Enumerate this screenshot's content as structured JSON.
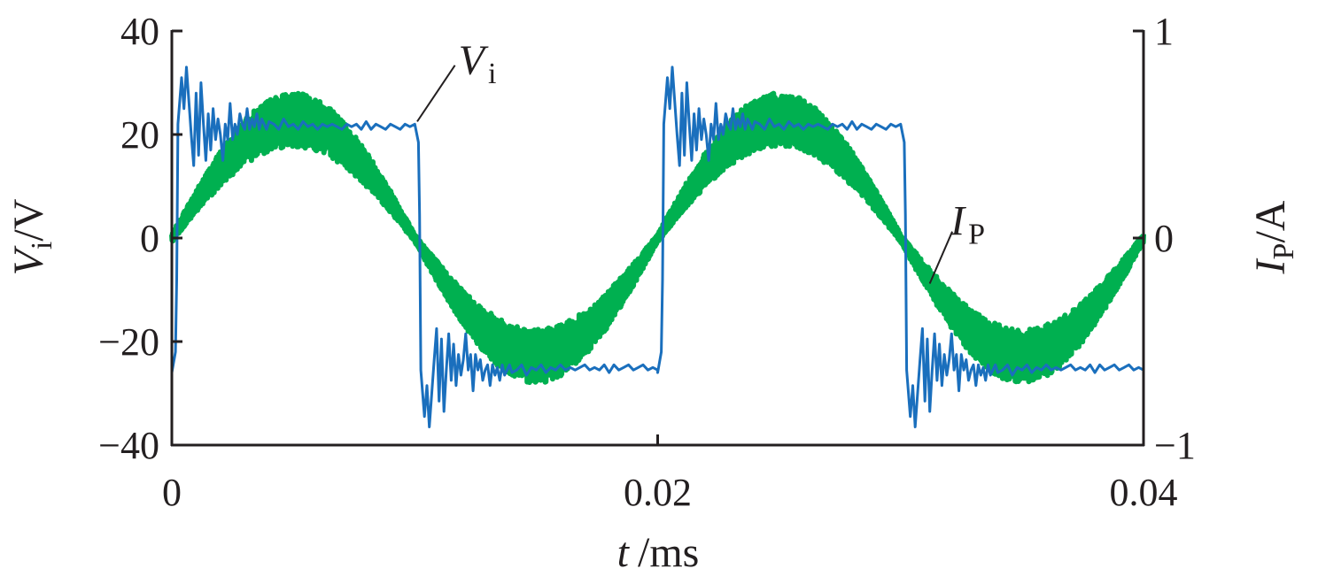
{
  "chart_data": {
    "type": "line",
    "title": "",
    "xlabel": {
      "main": "t",
      "unit": "/ms"
    },
    "ylabel_left": {
      "main": "V",
      "sub": "i",
      "unit": "/V"
    },
    "ylabel_right": {
      "main": "I",
      "sub": "P",
      "unit": "/A"
    },
    "xlim": [
      0,
      0.04
    ],
    "ylim_left": [
      -40,
      40
    ],
    "ylim_right": [
      -1,
      1
    ],
    "x_ticks": [
      0,
      0.02,
      0.04
    ],
    "x_tick_labels": [
      "0",
      "0.02",
      "0.04"
    ],
    "y_left_ticks": [
      40,
      20,
      0,
      -20,
      -40
    ],
    "y_left_tick_labels": [
      "40",
      "20",
      "0",
      "−20",
      "−40"
    ],
    "y_right_ticks": [
      1,
      0,
      -1
    ],
    "y_right_tick_labels": [
      "1",
      "0",
      "−1"
    ],
    "grid": false,
    "series": [
      {
        "name": "Vi",
        "label_main": "V",
        "label_sub": "i",
        "axis": "left",
        "color": "#1a6fbd",
        "square_wave": {
          "period": 0.02,
          "high": 21.5,
          "low": -25
        },
        "x": [
          0.0,
          0.00015,
          0.0002,
          0.00025,
          0.0004,
          0.0005,
          0.0006,
          0.0008,
          0.0009,
          0.001,
          0.0011,
          0.0012,
          0.0013,
          0.0014,
          0.0015,
          0.0016,
          0.0017,
          0.0018,
          0.0019,
          0.002,
          0.0021,
          0.0022,
          0.0023,
          0.0024,
          0.0025,
          0.0026,
          0.0027,
          0.0028,
          0.0029,
          0.003,
          0.0031,
          0.0032,
          0.0033,
          0.0034,
          0.0035,
          0.0036,
          0.0037,
          0.0038,
          0.0039,
          0.004,
          0.0042,
          0.0044,
          0.0046,
          0.0048,
          0.005,
          0.0052,
          0.0054,
          0.0056,
          0.0058,
          0.006,
          0.0062,
          0.0064,
          0.0066,
          0.0068,
          0.007,
          0.0072,
          0.0074,
          0.0076,
          0.0078,
          0.008,
          0.0082,
          0.0084,
          0.0086,
          0.0088,
          0.009,
          0.0092,
          0.0094,
          0.0096,
          0.0098,
          0.01
        ],
        "y": [
          -26,
          -22,
          -8,
          22,
          31,
          25,
          33,
          20,
          14,
          28,
          16,
          30,
          22,
          15,
          24,
          17,
          25,
          19,
          23,
          20,
          15,
          22,
          19,
          26,
          19,
          22,
          20,
          24,
          22,
          21,
          25,
          21,
          23,
          21.5,
          24,
          21,
          23,
          22,
          21,
          22.5,
          22,
          21,
          23,
          21.5,
          22,
          21,
          22.5,
          21.5,
          22,
          21,
          22,
          21.5,
          22,
          21.5,
          21,
          22,
          21.5,
          22,
          21,
          22.5,
          21,
          22,
          21.5,
          21,
          22,
          21.5,
          21,
          22,
          21.5,
          22
        ]
      },
      {
        "name": "IP",
        "label_main": "I",
        "label_sub": "P",
        "axis": "right",
        "color": "#00b050",
        "sine": {
          "amplitude": 0.57,
          "period": 0.02,
          "ripple_peak": 0.13,
          "ripple_zero": 0.02
        },
        "x": [
          0,
          0.0025,
          0.005,
          0.0075,
          0.01,
          0.0125,
          0.015,
          0.0175,
          0.02,
          0.0225,
          0.025,
          0.0275,
          0.03,
          0.0325,
          0.035,
          0.0375,
          0.04
        ],
        "y": [
          0,
          0.4,
          0.57,
          0.4,
          0,
          -0.4,
          -0.57,
          -0.4,
          0,
          0.4,
          0.57,
          0.4,
          0,
          -0.4,
          -0.57,
          -0.4,
          0
        ]
      }
    ],
    "annotations": [
      {
        "target": "Vi",
        "at_x": 0.0101,
        "at_y": 22.5,
        "label_x": 0.0118,
        "label_y": 32
      },
      {
        "target": "IP",
        "at_x": 0.0312,
        "at_y": -0.22,
        "label_x": 0.0322,
        "label_y": -0.02
      }
    ]
  }
}
